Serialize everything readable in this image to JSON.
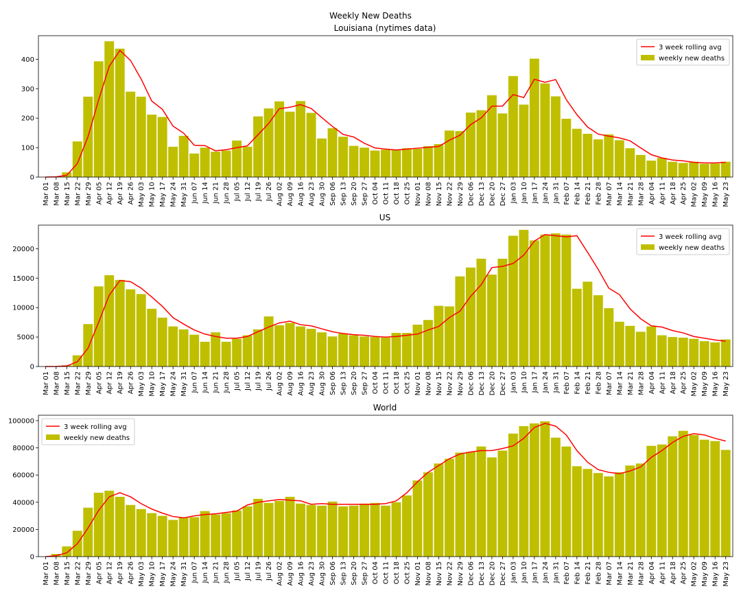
{
  "figure": {
    "suptitle": "Weekly New Deaths"
  },
  "chart_data": [
    {
      "type": "bar",
      "title": "Louisiana (nytimes data)",
      "bar_color": "#bfbf00",
      "line_color": "#ff0000",
      "legend": {
        "placement": "top-right",
        "line_label": "3 week rolling avg",
        "bar_label": "weekly new deaths"
      },
      "categories": [
        "Mar 01",
        "Mar 08",
        "Mar 15",
        "Mar 22",
        "Mar 29",
        "Apr 05",
        "Apr 12",
        "Apr 19",
        "Apr 26",
        "May 03",
        "May 10",
        "May 17",
        "May 24",
        "May 31",
        "Jun 07",
        "Jun 14",
        "Jun 21",
        "Jun 28",
        "Jul 05",
        "Jul 12",
        "Jul 19",
        "Jul 26",
        "Aug 02",
        "Aug 09",
        "Aug 16",
        "Aug 23",
        "Aug 30",
        "Sep 06",
        "Sep 13",
        "Sep 20",
        "Sep 27",
        "Oct 04",
        "Oct 11",
        "Oct 18",
        "Oct 25",
        "Nov 01",
        "Nov 08",
        "Nov 15",
        "Nov 22",
        "Nov 29",
        "Dec 06",
        "Dec 13",
        "Dec 20",
        "Dec 27",
        "Jan 03",
        "Jan 10",
        "Jan 17",
        "Jan 24",
        "Jan 31",
        "Feb 07",
        "Feb 14",
        "Feb 21",
        "Feb 28",
        "Mar 07",
        "Mar 14",
        "Mar 21",
        "Mar 28",
        "Apr 04",
        "Apr 11",
        "Apr 18",
        "Apr 25",
        "May 02",
        "May 09",
        "May 16",
        "May 23"
      ],
      "yticks": [
        0,
        100,
        200,
        300,
        400
      ],
      "ylim": [
        0,
        480
      ],
      "series": [
        {
          "name": "weekly new deaths",
          "values": [
            0,
            2,
            16,
            121,
            273,
            393,
            461,
            436,
            290,
            273,
            212,
            204,
            103,
            140,
            80,
            100,
            86,
            90,
            124,
            103,
            206,
            233,
            257,
            222,
            258,
            218,
            131,
            166,
            137,
            106,
            100,
            90,
            93,
            93,
            98,
            96,
            105,
            112,
            158,
            156,
            219,
            227,
            278,
            216,
            343,
            246,
            402,
            318,
            274,
            198,
            164,
            147,
            128,
            145,
            125,
            98,
            75,
            56,
            65,
            52,
            48,
            52,
            45,
            46,
            52
          ]
        },
        {
          "name": "3 week rolling avg",
          "values": [
            0,
            1,
            6,
            46,
            137,
            262,
            376,
            430,
            396,
            333,
            258,
            230,
            173,
            149,
            108,
            107,
            89,
            93,
            100,
            106,
            144,
            182,
            232,
            237,
            246,
            233,
            202,
            172,
            145,
            136,
            115,
            99,
            95,
            92,
            95,
            98,
            101,
            104,
            125,
            142,
            178,
            201,
            241,
            241,
            280,
            270,
            332,
            322,
            331,
            263,
            212,
            170,
            146,
            139,
            133,
            123,
            99,
            76,
            65,
            58,
            55,
            50,
            48,
            48,
            50
          ]
        }
      ]
    },
    {
      "type": "bar",
      "title": "US",
      "bar_color": "#bfbf00",
      "line_color": "#ff0000",
      "legend": {
        "placement": "top-right",
        "line_label": "3 week rolling avg",
        "bar_label": "weekly new deaths"
      },
      "categories": [
        "Mar 01",
        "Mar 08",
        "Mar 15",
        "Mar 22",
        "Mar 29",
        "Apr 05",
        "Apr 12",
        "Apr 19",
        "Apr 26",
        "May 03",
        "May 10",
        "May 17",
        "May 24",
        "May 31",
        "Jun 07",
        "Jun 14",
        "Jun 21",
        "Jun 28",
        "Jul 05",
        "Jul 12",
        "Jul 19",
        "Jul 26",
        "Aug 02",
        "Aug 09",
        "Aug 16",
        "Aug 23",
        "Aug 30",
        "Sep 06",
        "Sep 13",
        "Sep 20",
        "Sep 27",
        "Oct 04",
        "Oct 11",
        "Oct 18",
        "Oct 25",
        "Nov 01",
        "Nov 08",
        "Nov 15",
        "Nov 22",
        "Nov 29",
        "Dec 06",
        "Dec 13",
        "Dec 20",
        "Dec 27",
        "Jan 03",
        "Jan 10",
        "Jan 17",
        "Jan 24",
        "Jan 31",
        "Feb 07",
        "Feb 14",
        "Feb 21",
        "Feb 28",
        "Mar 07",
        "Mar 14",
        "Mar 21",
        "Mar 28",
        "Apr 04",
        "Apr 11",
        "Apr 18",
        "Apr 25",
        "May 02",
        "May 09",
        "May 16",
        "May 23"
      ],
      "yticks": [
        0,
        5000,
        10000,
        15000,
        20000
      ],
      "ylim": [
        0,
        24000
      ],
      "series": [
        {
          "name": "weekly new deaths",
          "values": [
            0,
            20,
            200,
            1900,
            7200,
            13600,
            15500,
            14700,
            13100,
            12300,
            9800,
            8300,
            6800,
            6300,
            5400,
            4200,
            5800,
            4200,
            4700,
            5300,
            6300,
            8500,
            7000,
            7400,
            6800,
            6400,
            5800,
            5100,
            5600,
            5300,
            5100,
            5000,
            4900,
            5700,
            5700,
            7100,
            7900,
            10300,
            10200,
            15300,
            16800,
            18300,
            15600,
            18300,
            22200,
            23200,
            21400,
            22400,
            22600,
            22400,
            13200,
            14400,
            12100,
            9900,
            7600,
            6900,
            5900,
            6800,
            5300,
            5000,
            4900,
            4700,
            4300,
            4100,
            4600
          ]
        },
        {
          "name": "3 week rolling avg",
          "values": [
            0,
            10,
            100,
            800,
            3100,
            7500,
            12100,
            14600,
            14400,
            13300,
            11800,
            10200,
            8300,
            7200,
            6200,
            5500,
            5100,
            4800,
            4800,
            5100,
            5900,
            6700,
            7400,
            7700,
            7100,
            6900,
            6400,
            5900,
            5600,
            5400,
            5300,
            5100,
            5000,
            5100,
            5300,
            5500,
            6200,
            6800,
            8300,
            9400,
            11900,
            13900,
            16800,
            17000,
            17500,
            18900,
            21300,
            22400,
            22200,
            22000,
            22200,
            19400,
            16500,
            13300,
            12200,
            9800,
            8100,
            6900,
            6700,
            6100,
            5700,
            5100,
            4800,
            4500,
            4300
          ]
        }
      ]
    },
    {
      "type": "bar",
      "title": "World",
      "bar_color": "#bfbf00",
      "line_color": "#ff0000",
      "legend": {
        "placement": "top-left",
        "line_label": "3 week rolling avg",
        "bar_label": "weekly new deaths"
      },
      "categories": [
        "Mar 01",
        "Mar 08",
        "Mar 15",
        "Mar 22",
        "Mar 29",
        "Apr 05",
        "Apr 12",
        "Apr 19",
        "Apr 26",
        "May 03",
        "May 10",
        "May 17",
        "May 24",
        "May 31",
        "Jun 07",
        "Jun 14",
        "Jun 21",
        "Jun 28",
        "Jul 05",
        "Jul 12",
        "Jul 19",
        "Jul 26",
        "Aug 02",
        "Aug 09",
        "Aug 16",
        "Aug 23",
        "Aug 30",
        "Sep 06",
        "Sep 13",
        "Sep 20",
        "Sep 27",
        "Oct 04",
        "Oct 11",
        "Oct 18",
        "Oct 25",
        "Nov 01",
        "Nov 08",
        "Nov 15",
        "Nov 22",
        "Nov 29",
        "Dec 06",
        "Dec 13",
        "Dec 20",
        "Dec 27",
        "Jan 03",
        "Jan 10",
        "Jan 17",
        "Jan 24",
        "Jan 31",
        "Feb 07",
        "Feb 14",
        "Feb 21",
        "Feb 28",
        "Mar 07",
        "Mar 14",
        "Mar 21",
        "Mar 28",
        "Apr 04",
        "Apr 11",
        "Apr 18",
        "Apr 25",
        "May 02",
        "May 09",
        "May 16",
        "May 23"
      ],
      "yticks": [
        0,
        20000,
        40000,
        60000,
        80000,
        100000
      ],
      "ylim": [
        0,
        104000
      ],
      "series": [
        {
          "name": "weekly new deaths",
          "values": [
            0,
            2000,
            7500,
            19000,
            36000,
            47000,
            48500,
            44000,
            38000,
            35000,
            32000,
            30000,
            27000,
            29000,
            29000,
            33500,
            31000,
            32000,
            34000,
            37000,
            42500,
            39500,
            41000,
            44000,
            39000,
            38000,
            37500,
            40500,
            37000,
            37500,
            39000,
            39500,
            37500,
            40000,
            45000,
            56000,
            62000,
            68500,
            72000,
            76500,
            77000,
            81000,
            73000,
            78000,
            90500,
            96000,
            98000,
            99500,
            87500,
            81000,
            66500,
            64500,
            61500,
            59000,
            62000,
            67000,
            68500,
            81500,
            82500,
            88500,
            92500,
            89500,
            86000,
            85000,
            78500
          ]
        },
        {
          "name": "3 week rolling avg",
          "values": [
            0,
            700,
            2800,
            9500,
            21000,
            34000,
            44000,
            47000,
            44000,
            39000,
            35000,
            32000,
            29500,
            28500,
            30000,
            31000,
            31500,
            32500,
            33500,
            38000,
            40000,
            41000,
            42000,
            41500,
            41000,
            38500,
            39000,
            38500,
            38500,
            38500,
            38500,
            38500,
            39000,
            41000,
            47000,
            55000,
            62000,
            67000,
            72000,
            75500,
            77000,
            78000,
            78000,
            79500,
            81500,
            87000,
            95000,
            98000,
            96000,
            89500,
            78000,
            69500,
            64000,
            62000,
            61000,
            63000,
            66000,
            73000,
            78000,
            84000,
            88500,
            90500,
            89500,
            87000,
            85000
          ]
        }
      ]
    }
  ]
}
